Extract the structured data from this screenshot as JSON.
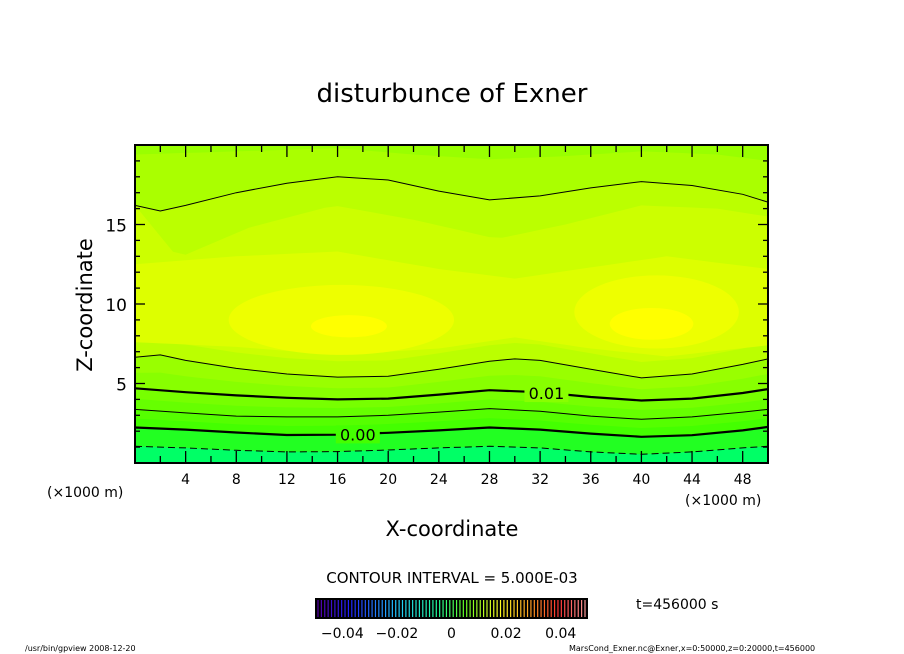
{
  "chart_data": {
    "type": "contour",
    "title": "disturbunce of Exner",
    "xlabel": "X-coordinate",
    "ylabel": "Z-coordinate",
    "x_unit_left": "(×1000 m)",
    "x_unit_right": "(×1000 m)",
    "xlim": [
      0,
      50
    ],
    "ylim": [
      0,
      20
    ],
    "x_ticks": [
      4,
      8,
      12,
      16,
      20,
      24,
      28,
      32,
      36,
      40,
      44,
      48
    ],
    "x_tick_labels": [
      "4",
      "8",
      "12",
      "16",
      "20",
      "24",
      "28",
      "32",
      "36",
      "40",
      "44",
      "48"
    ],
    "y_ticks": [
      5,
      10,
      15
    ],
    "y_tick_labels": [
      "5",
      "10",
      "15"
    ],
    "contour_interval_text": "CONTOUR INTERVAL = 5.000E-03",
    "contour_interval": 0.005,
    "time_text": "t=456000 s",
    "contours": [
      {
        "level": -0.005,
        "style": "dashed",
        "points": [
          [
            0,
            1.05
          ],
          [
            4,
            0.95
          ],
          [
            8,
            0.8
          ],
          [
            12,
            0.7
          ],
          [
            16,
            0.72
          ],
          [
            20,
            0.82
          ],
          [
            24,
            0.95
          ],
          [
            28,
            1.05
          ],
          [
            32,
            0.95
          ],
          [
            36,
            0.7
          ],
          [
            40,
            0.55
          ],
          [
            44,
            0.7
          ],
          [
            48,
            0.95
          ],
          [
            50,
            1.05
          ]
        ]
      },
      {
        "level": 0.0,
        "style": "thick",
        "label": "0.00",
        "label_at": [
          17.6,
          1.8
        ],
        "points": [
          [
            0,
            2.23
          ],
          [
            4,
            2.1
          ],
          [
            8,
            1.92
          ],
          [
            12,
            1.76
          ],
          [
            16,
            1.78
          ],
          [
            20,
            1.9
          ],
          [
            24,
            2.05
          ],
          [
            28,
            2.23
          ],
          [
            32,
            2.1
          ],
          [
            36,
            1.85
          ],
          [
            40,
            1.65
          ],
          [
            44,
            1.75
          ],
          [
            48,
            2.05
          ],
          [
            50,
            2.27
          ]
        ]
      },
      {
        "level": 0.005,
        "style": "thin",
        "points": [
          [
            0,
            3.37
          ],
          [
            4,
            3.15
          ],
          [
            8,
            2.95
          ],
          [
            12,
            2.9
          ],
          [
            16,
            2.9
          ],
          [
            20,
            3.0
          ],
          [
            24,
            3.2
          ],
          [
            28,
            3.42
          ],
          [
            32,
            3.25
          ],
          [
            36,
            2.95
          ],
          [
            40,
            2.75
          ],
          [
            44,
            2.9
          ],
          [
            48,
            3.2
          ],
          [
            50,
            3.37
          ]
        ]
      },
      {
        "level": 0.01,
        "style": "thick",
        "label": "0.01",
        "label_at": [
          32.5,
          4.4
        ],
        "points": [
          [
            0,
            4.7
          ],
          [
            4,
            4.45
          ],
          [
            8,
            4.25
          ],
          [
            12,
            4.1
          ],
          [
            16,
            4.0
          ],
          [
            20,
            4.05
          ],
          [
            24,
            4.3
          ],
          [
            28,
            4.58
          ],
          [
            32,
            4.45
          ],
          [
            36,
            4.15
          ],
          [
            40,
            3.93
          ],
          [
            44,
            4.05
          ],
          [
            48,
            4.4
          ],
          [
            50,
            4.65
          ]
        ]
      },
      {
        "level": 0.015,
        "style": "thin",
        "points": [
          [
            0,
            6.65
          ],
          [
            2,
            6.8
          ],
          [
            4,
            6.45
          ],
          [
            8,
            5.95
          ],
          [
            12,
            5.6
          ],
          [
            16,
            5.4
          ],
          [
            20,
            5.45
          ],
          [
            24,
            5.9
          ],
          [
            28,
            6.4
          ],
          [
            30,
            6.55
          ],
          [
            32,
            6.45
          ],
          [
            36,
            5.9
          ],
          [
            40,
            5.35
          ],
          [
            44,
            5.6
          ],
          [
            48,
            6.2
          ],
          [
            50,
            6.55
          ]
        ]
      },
      {
        "level": 0.015,
        "style": "thin",
        "points": [
          [
            0,
            16.2
          ],
          [
            2,
            15.85
          ],
          [
            4,
            16.2
          ],
          [
            8,
            17.0
          ],
          [
            12,
            17.6
          ],
          [
            16,
            18.0
          ],
          [
            20,
            17.8
          ],
          [
            24,
            17.1
          ],
          [
            28,
            16.55
          ],
          [
            32,
            16.8
          ],
          [
            36,
            17.3
          ],
          [
            40,
            17.7
          ],
          [
            44,
            17.45
          ],
          [
            48,
            16.9
          ],
          [
            50,
            16.4
          ]
        ]
      }
    ],
    "fill_upper_boundaries": [
      {
        "color": "#bbff00",
        "points": [
          [
            0,
            16.2
          ],
          [
            3.4,
            12.9
          ],
          [
            9,
            14.8
          ],
          [
            15.7,
            16.2
          ],
          [
            22,
            15.3
          ],
          [
            28.6,
            14.1
          ],
          [
            34,
            15.0
          ],
          [
            40,
            16.2
          ],
          [
            46,
            16.0
          ],
          [
            50,
            15.5
          ]
        ]
      },
      {
        "color": "#99ff00",
        "points": [
          [
            0,
            19.4
          ],
          [
            8,
            19.6
          ],
          [
            16,
            19.8
          ],
          [
            22,
            19.4
          ],
          [
            28,
            19.1
          ],
          [
            34,
            19.3
          ],
          [
            40,
            19.6
          ],
          [
            46,
            19.4
          ],
          [
            50,
            19.0
          ]
        ]
      }
    ],
    "fill_core_band": {
      "color": "#ddff00",
      "top": [
        [
          0,
          12.5
        ],
        [
          8,
          13.0
        ],
        [
          16,
          13.3
        ],
        [
          24,
          12.2
        ],
        [
          30,
          11.6
        ],
        [
          36,
          12.3
        ],
        [
          42,
          13.0
        ],
        [
          50,
          12.2
        ]
      ],
      "bottom": [
        [
          0,
          7.6
        ],
        [
          8,
          7.3
        ],
        [
          16,
          6.8
        ],
        [
          24,
          7.2
        ],
        [
          30,
          7.9
        ],
        [
          36,
          7.2
        ],
        [
          42,
          6.7
        ],
        [
          50,
          7.4
        ]
      ]
    },
    "maxima": [
      {
        "color": "#eeff00",
        "center": [
          16.3,
          9.0
        ],
        "radius": [
          8.9,
          2.2
        ]
      },
      {
        "color": "#eeff00",
        "center": [
          41.2,
          9.5
        ],
        "radius": [
          6.5,
          2.3
        ]
      },
      {
        "color": "#ffff00",
        "center": [
          16.9,
          8.6
        ],
        "radius": [
          3.0,
          0.7
        ]
      },
      {
        "color": "#ffff00",
        "center": [
          40.8,
          8.75
        ],
        "radius": [
          3.3,
          1.0
        ]
      }
    ],
    "band_colors": {
      "below_m0005": "#00ff66",
      "m0005_0": "#22ff22",
      "0_00025": "#44ff00",
      "00025_0005": "#55ff00",
      "0005_00075": "#66ff00",
      "00075_001": "#77ff00",
      "001_00125": "#88ff00",
      "00125_0015": "#99ff00",
      "0015_00175": "#bbff00",
      "00175_002": "#ccff00"
    },
    "colorbar": {
      "range": [
        -0.05,
        0.05
      ],
      "ticks": [
        -0.04,
        -0.02,
        0,
        0.02,
        0.04
      ],
      "tick_labels": [
        "-0.04",
        "-0.02",
        "0",
        "0.02",
        "0.04"
      ]
    }
  },
  "footer": {
    "left": "/usr/bin/gpview   2008-12-20",
    "right": "MarsCond_Exner.nc@Exner,x=0:50000,z=0:20000,t=456000"
  }
}
